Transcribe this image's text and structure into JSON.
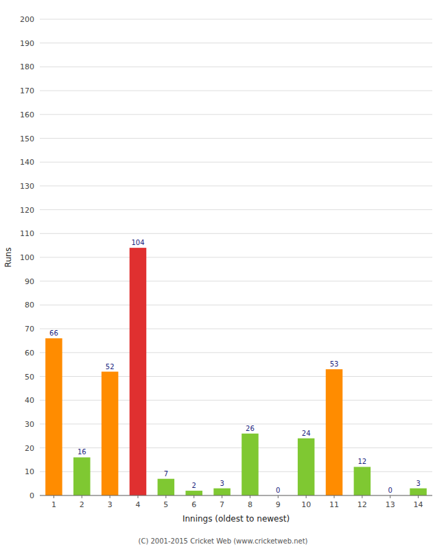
{
  "chart_data": {
    "type": "bar",
    "categories": [
      "1",
      "2",
      "3",
      "4",
      "5",
      "6",
      "7",
      "8",
      "9",
      "10",
      "11",
      "12",
      "13",
      "14"
    ],
    "values": [
      66,
      16,
      52,
      104,
      7,
      2,
      3,
      26,
      0,
      24,
      53,
      12,
      0,
      3
    ],
    "colors": [
      "#ff8c00",
      "#7fc832",
      "#ff8c00",
      "#e03030",
      "#7fc832",
      "#7fc832",
      "#7fc832",
      "#7fc832",
      "#7fc832",
      "#7fc832",
      "#ff8c00",
      "#7fc832",
      "#7fc832",
      "#7fc832"
    ],
    "xlabel": "Innings (oldest to newest)",
    "ylabel": "Runs",
    "ylim": [
      0,
      200
    ],
    "yticks": [
      0,
      10,
      20,
      30,
      40,
      50,
      60,
      70,
      80,
      90,
      100,
      110,
      120,
      130,
      140,
      150,
      160,
      170,
      180,
      190,
      200
    ],
    "grid": true,
    "data_labels": true,
    "footer": "(C) 2001-2015 Cricket Web (www.cricketweb.net)"
  }
}
